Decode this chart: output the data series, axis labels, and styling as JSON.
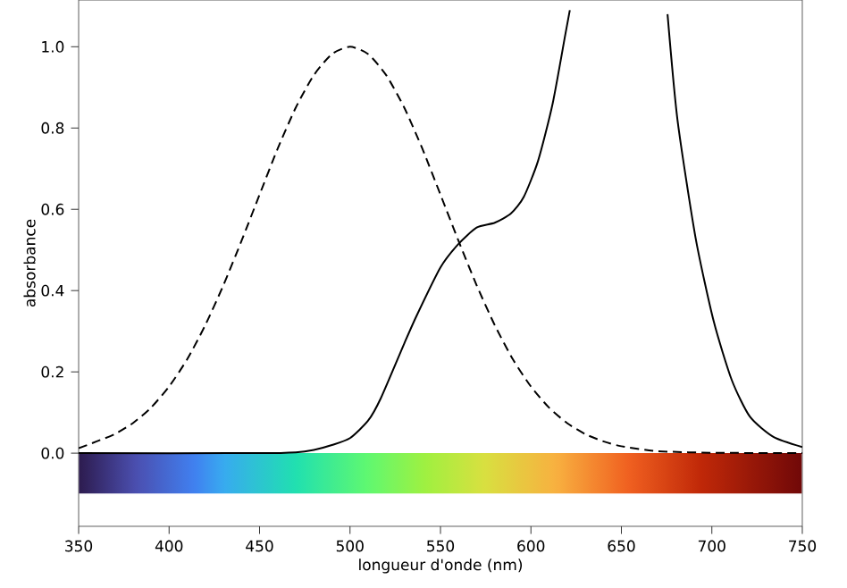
{
  "chart_data": {
    "type": "line",
    "xlabel": "longueur d'onde (nm)",
    "ylabel": "absorbance",
    "xlim": [
      350,
      750
    ],
    "ylim": [
      -0.18,
      1.115
    ],
    "xticks": [
      350,
      400,
      450,
      500,
      550,
      600,
      650,
      700,
      750
    ],
    "yticks": [
      {
        "value": 0,
        "label": "0.0"
      },
      {
        "value": 0.2,
        "label": "0.2"
      },
      {
        "value": 0.4,
        "label": "0.4"
      },
      {
        "value": 0.6,
        "label": "0.6"
      },
      {
        "value": 0.8,
        "label": "0.8"
      },
      {
        "value": 1.0,
        "label": "1.0"
      }
    ],
    "grid": false,
    "marker": "none",
    "bands": [
      {
        "axis": "y",
        "from": -0.1,
        "to": 0
      }
    ],
    "series": [
      {
        "color": "#000000",
        "line_style": "dashed",
        "x": [
          350,
          360,
          370,
          380,
          390,
          400,
          410,
          420,
          430,
          440,
          450,
          460,
          470,
          480,
          490,
          500,
          510,
          520,
          530,
          540,
          550,
          560,
          570,
          580,
          590,
          600,
          610,
          620,
          630,
          640,
          650,
          670,
          700,
          750
        ],
        "values": [
          0.012,
          0.029,
          0.047,
          0.074,
          0.112,
          0.164,
          0.231,
          0.315,
          0.413,
          0.522,
          0.636,
          0.749,
          0.85,
          0.93,
          0.982,
          1.0,
          0.982,
          0.93,
          0.85,
          0.749,
          0.636,
          0.522,
          0.413,
          0.315,
          0.231,
          0.164,
          0.112,
          0.074,
          0.047,
          0.029,
          0.017,
          0.005,
          0.001,
          0.0
        ]
      },
      {
        "color": "#000000",
        "line_style": "solid",
        "x": [
          350,
          450,
          470,
          480,
          490,
          500,
          510,
          517,
          530,
          537,
          550,
          560,
          570,
          580,
          589,
          596,
          604,
          612,
          619,
          621.5,
          648,
          675.5,
          681,
          691,
          701,
          711,
          721,
          734,
          750
        ],
        "values": [
          0.0,
          0.0,
          0.002,
          0.008,
          0.02,
          0.037,
          0.08,
          0.135,
          0.27,
          0.34,
          0.457,
          0.515,
          0.555,
          0.567,
          0.59,
          0.63,
          0.72,
          0.86,
          1.03,
          1.09,
          null,
          1.08,
          0.82,
          0.53,
          0.325,
          0.18,
          0.09,
          0.04,
          0.015
        ]
      }
    ]
  }
}
